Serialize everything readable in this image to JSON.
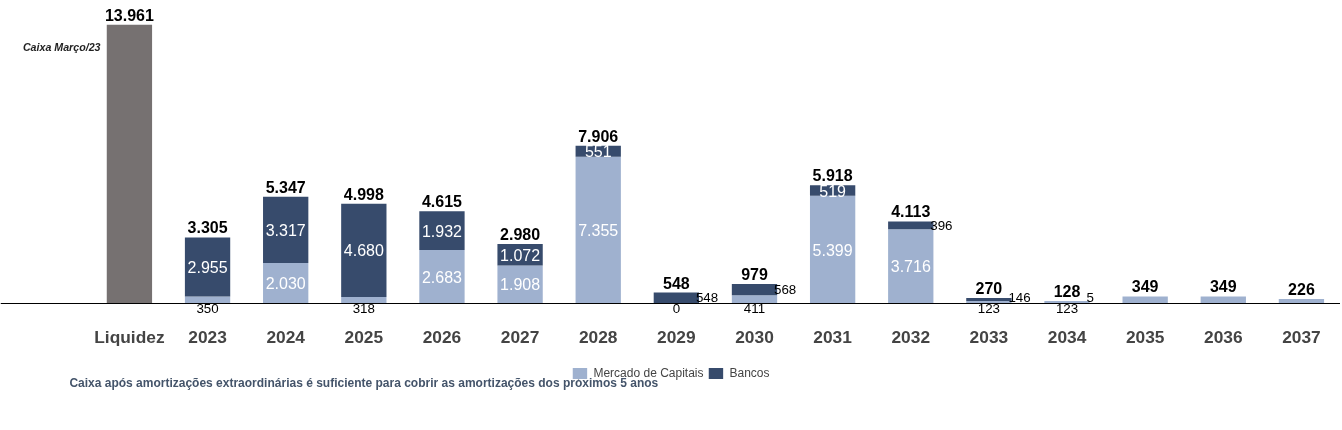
{
  "chart_data": {
    "type": "bar",
    "stacked": true,
    "categories": [
      "Liquidez",
      "2023",
      "2024",
      "2025",
      "2026",
      "2027",
      "2028",
      "2029",
      "2030",
      "2031",
      "2032",
      "2033",
      "2034",
      "2035",
      "2036",
      "2037"
    ],
    "series": [
      {
        "color": "#767171",
        "values": [
          13961,
          null,
          null,
          null,
          null,
          null,
          null,
          null,
          null,
          null,
          null,
          null,
          null,
          null,
          null,
          null
        ]
      },
      {
        "name": "Mercado de Capitais",
        "color": "#9fb1cf",
        "values": [
          null,
          350,
          2030,
          318,
          2683,
          1908,
          7355,
          0,
          411,
          5399,
          3716,
          123,
          123,
          349,
          349,
          226
        ],
        "value_labels": [
          null,
          "350",
          "2.030",
          "318",
          "2.683",
          "1.908",
          "7.355",
          "0",
          "411",
          "5.399",
          "3.716",
          "123",
          "123",
          null,
          null,
          null
        ]
      },
      {
        "name": "Bancos",
        "color": "#374b6c",
        "values": [
          null,
          2955,
          3317,
          4680,
          1932,
          1072,
          551,
          548,
          568,
          519,
          396,
          146,
          5,
          null,
          null,
          null
        ],
        "value_labels": [
          null,
          "2.955",
          "3.317",
          "4.680",
          "1.932",
          "1.072",
          "551",
          "548",
          "568",
          "519",
          "396",
          "146",
          "5",
          null,
          null,
          null
        ]
      }
    ],
    "totals": [
      "13.961",
      "3.305",
      "5.347",
      "4.998",
      "4.615",
      "2.980",
      "7.906",
      "548",
      "979",
      "5.918",
      "4.113",
      "270",
      "128",
      "349",
      "349",
      "226"
    ],
    "annotations": [
      "Caixa Março/23",
      "Caixa após amortizações extraordinárias é suficiente para cobrir as amortizações dos próximos 5 anos"
    ],
    "legend": "bottom",
    "grid": false
  }
}
